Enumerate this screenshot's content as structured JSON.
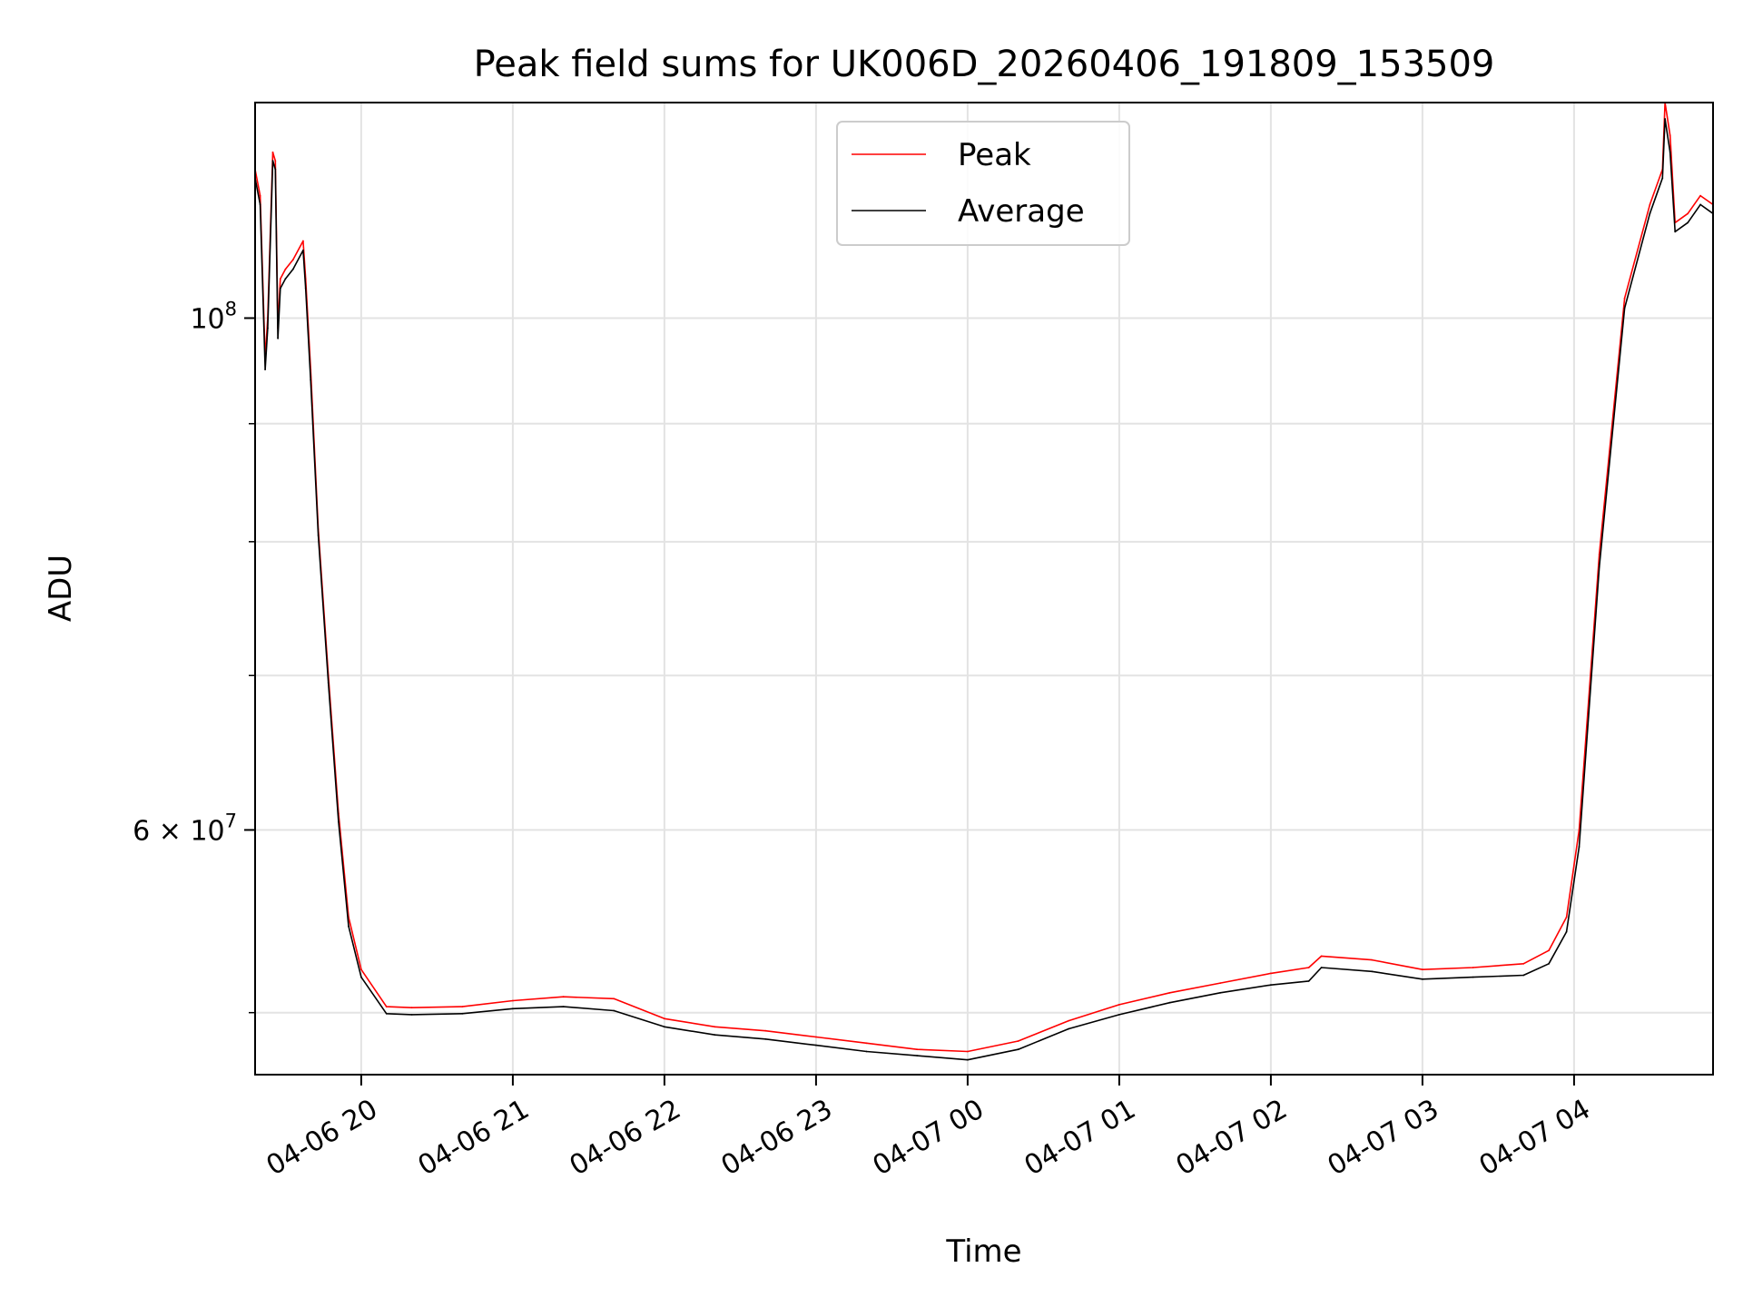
{
  "chart_data": {
    "type": "line",
    "title": "Peak field sums for UK006D_20260406_191809_153509",
    "xlabel": "Time",
    "ylabel": "ADU",
    "yscale": "log",
    "ylim": [
      47000000,
      124000000
    ],
    "xlim": [
      "2026-04-06 19:18",
      "2026-04-07 04:55"
    ],
    "grid": true,
    "legend_position": "top-center",
    "x_ticks": [
      {
        "t": "2026-04-06 20:00",
        "label": "04-06 20"
      },
      {
        "t": "2026-04-06 21:00",
        "label": "04-06 21"
      },
      {
        "t": "2026-04-06 22:00",
        "label": "04-06 22"
      },
      {
        "t": "2026-04-06 23:00",
        "label": "04-06 23"
      },
      {
        "t": "2026-04-07 00:00",
        "label": "04-07 00"
      },
      {
        "t": "2026-04-07 01:00",
        "label": "04-07 01"
      },
      {
        "t": "2026-04-07 02:00",
        "label": "04-07 02"
      },
      {
        "t": "2026-04-07 03:00",
        "label": "04-07 03"
      },
      {
        "t": "2026-04-07 04:00",
        "label": "04-07 04"
      }
    ],
    "y_ticks": [
      {
        "value": 100000000,
        "base": "10",
        "exp": "8",
        "prefix": ""
      },
      {
        "value": 60000000,
        "base": "10",
        "exp": "7",
        "prefix": "6 × "
      }
    ],
    "y_minor_ticks": [
      50000000,
      70000000,
      80000000,
      90000000
    ],
    "series": [
      {
        "name": "Peak",
        "color": "#ff0000",
        "x": [
          "2026-04-06 19:18",
          "2026-04-06 19:20",
          "2026-04-06 19:22",
          "2026-04-06 19:23",
          "2026-04-06 19:25",
          "2026-04-06 19:26",
          "2026-04-06 19:27",
          "2026-04-06 19:28",
          "2026-04-06 19:30",
          "2026-04-06 19:33",
          "2026-04-06 19:37",
          "2026-04-06 19:38",
          "2026-04-06 19:40",
          "2026-04-06 19:43",
          "2026-04-06 19:47",
          "2026-04-06 19:51",
          "2026-04-06 19:55",
          "2026-04-06 20:00",
          "2026-04-06 20:10",
          "2026-04-06 20:20",
          "2026-04-06 20:40",
          "2026-04-06 21:00",
          "2026-04-06 21:20",
          "2026-04-06 21:40",
          "2026-04-06 22:00",
          "2026-04-06 22:20",
          "2026-04-06 22:40",
          "2026-04-06 23:00",
          "2026-04-06 23:20",
          "2026-04-06 23:40",
          "2026-04-07 00:00",
          "2026-04-07 00:20",
          "2026-04-07 00:40",
          "2026-04-07 01:00",
          "2026-04-07 01:20",
          "2026-04-07 01:40",
          "2026-04-07 02:00",
          "2026-04-07 02:15",
          "2026-04-07 02:20",
          "2026-04-07 02:40",
          "2026-04-07 03:00",
          "2026-04-07 03:20",
          "2026-04-07 03:40",
          "2026-04-07 03:50",
          "2026-04-07 03:57",
          "2026-04-07 04:02",
          "2026-04-07 04:10",
          "2026-04-07 04:20",
          "2026-04-07 04:30",
          "2026-04-07 04:35",
          "2026-04-07 04:36",
          "2026-04-07 04:38",
          "2026-04-07 04:40",
          "2026-04-07 04:45",
          "2026-04-07 04:50",
          "2026-04-07 04:55"
        ],
        "values": [
          116000000,
          113000000,
          96000000,
          100000000,
          118000000,
          117000000,
          99000000,
          104000000,
          105000000,
          106000000,
          108000000,
          104000000,
          95000000,
          81000000,
          70000000,
          61000000,
          55000000,
          52200000,
          50300000,
          50250000,
          50300000,
          50600000,
          50800000,
          50700000,
          49700000,
          49300000,
          49100000,
          48800000,
          48500000,
          48200000,
          48100000,
          48600000,
          49600000,
          50400000,
          51000000,
          51500000,
          52000000,
          52300000,
          52900000,
          52700000,
          52200000,
          52300000,
          52500000,
          53200000,
          55000000,
          60000000,
          79000000,
          102000000,
          112000000,
          116000000,
          124000000,
          120000000,
          110000000,
          111000000,
          113000000,
          112000000
        ]
      },
      {
        "name": "Average",
        "color": "#000000",
        "x": [
          "2026-04-06 19:18",
          "2026-04-06 19:20",
          "2026-04-06 19:22",
          "2026-04-06 19:23",
          "2026-04-06 19:25",
          "2026-04-06 19:26",
          "2026-04-06 19:27",
          "2026-04-06 19:28",
          "2026-04-06 19:30",
          "2026-04-06 19:33",
          "2026-04-06 19:37",
          "2026-04-06 19:38",
          "2026-04-06 19:40",
          "2026-04-06 19:43",
          "2026-04-06 19:47",
          "2026-04-06 19:51",
          "2026-04-06 19:55",
          "2026-04-06 20:00",
          "2026-04-06 20:10",
          "2026-04-06 20:20",
          "2026-04-06 20:40",
          "2026-04-06 21:00",
          "2026-04-06 21:20",
          "2026-04-06 21:40",
          "2026-04-06 22:00",
          "2026-04-06 22:20",
          "2026-04-06 22:40",
          "2026-04-06 23:00",
          "2026-04-06 23:20",
          "2026-04-06 23:40",
          "2026-04-07 00:00",
          "2026-04-07 00:20",
          "2026-04-07 00:40",
          "2026-04-07 01:00",
          "2026-04-07 01:20",
          "2026-04-07 01:40",
          "2026-04-07 02:00",
          "2026-04-07 02:15",
          "2026-04-07 02:20",
          "2026-04-07 02:40",
          "2026-04-07 03:00",
          "2026-04-07 03:20",
          "2026-04-07 03:40",
          "2026-04-07 03:50",
          "2026-04-07 03:57",
          "2026-04-07 04:02",
          "2026-04-07 04:10",
          "2026-04-07 04:20",
          "2026-04-07 04:30",
          "2026-04-07 04:35",
          "2026-04-07 04:36",
          "2026-04-07 04:38",
          "2026-04-07 04:40",
          "2026-04-07 04:45",
          "2026-04-07 04:50",
          "2026-04-07 04:55"
        ],
        "values": [
          115000000,
          112000000,
          95000000,
          99000000,
          117000000,
          116000000,
          98000000,
          103000000,
          104000000,
          105000000,
          107000000,
          103000000,
          94000000,
          80500000,
          69500000,
          60500000,
          54500000,
          51800000,
          49950000,
          49900000,
          49950000,
          50200000,
          50300000,
          50100000,
          49300000,
          48900000,
          48700000,
          48400000,
          48100000,
          47900000,
          47700000,
          48200000,
          49200000,
          49900000,
          50500000,
          51000000,
          51400000,
          51600000,
          52300000,
          52100000,
          51700000,
          51800000,
          51900000,
          52500000,
          54200000,
          59000000,
          78000000,
          101000000,
          111000000,
          115000000,
          122000000,
          118000000,
          109000000,
          110000000,
          112000000,
          111000000
        ]
      }
    ]
  }
}
